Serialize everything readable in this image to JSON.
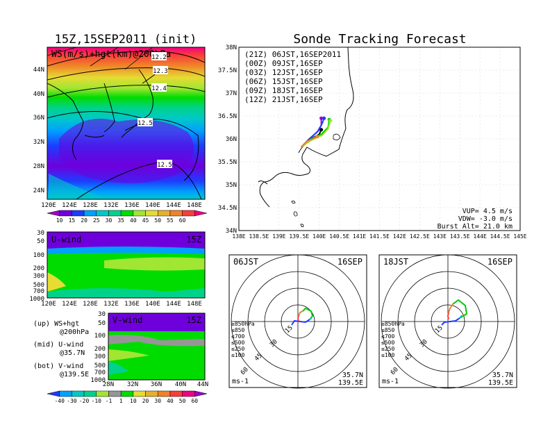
{
  "left_title": "15Z,15SEP2011 (init)",
  "right_title": "Sonde Tracking Forecast",
  "top_map": {
    "label": "WS(m/s)+hgt(km)@200hPa",
    "lat_ticks": [
      "44N",
      "40N",
      "36N",
      "32N",
      "28N",
      "24N"
    ],
    "lon_ticks": [
      "120E",
      "124E",
      "128E",
      "132E",
      "136E",
      "140E",
      "144E",
      "148E"
    ],
    "contour_labels": [
      "12.2",
      "12.3",
      "12.4",
      "12.5",
      "12.5"
    ],
    "colorbar": {
      "labels": [
        "10",
        "15",
        "20",
        "25",
        "30",
        "35",
        "40",
        "45",
        "50",
        "55",
        "60"
      ],
      "colors": [
        "#a000c8",
        "#6e00dc",
        "#1e3cff",
        "#00a0ff",
        "#00c8c8",
        "#00d28c",
        "#00dc00",
        "#a0e632",
        "#e6dc32",
        "#e6af2d",
        "#f08228",
        "#fa3c3c",
        "#f00082"
      ]
    }
  },
  "u_wind": {
    "label": "U-wind",
    "time": "15Z",
    "p_ticks": [
      "30",
      "50",
      "100",
      "200",
      "300",
      "500",
      "700",
      "1000"
    ],
    "lon_ticks": [
      "120E",
      "124E",
      "128E",
      "132E",
      "136E",
      "140E",
      "144E",
      "148E"
    ]
  },
  "v_wind": {
    "label": "V-wind",
    "time": "15Z",
    "p_ticks": [
      "30",
      "50",
      "100",
      "200",
      "300",
      "500",
      "700",
      "1000"
    ],
    "lat_ticks": [
      "28N",
      "32N",
      "36N",
      "40N",
      "44N"
    ],
    "colorbar": {
      "labels": [
        "-40",
        "-30",
        "-20",
        "-10",
        "-1",
        "1",
        "10",
        "20",
        "30",
        "40",
        "50",
        "60"
      ],
      "colors": [
        "#1e3cff",
        "#00a0ff",
        "#00c8c8",
        "#00d28c",
        "#a0e632",
        "#969696",
        "#00dc00",
        "#e6dc32",
        "#e6af2d",
        "#f08228",
        "#fa3c3c",
        "#f00082",
        "#a000c8"
      ]
    }
  },
  "notes": [
    {
      "a": "(up) WS+hgt",
      "b": "@200hPa"
    },
    {
      "a": "(mid) U-wind",
      "b": "@35.7N"
    },
    {
      "a": "(bot) V-wind",
      "b": "@139.5E"
    }
  ],
  "track_map": {
    "lat_ticks": [
      "38N",
      "37.5N",
      "37N",
      "36.5N",
      "36N",
      "35.5N",
      "35N",
      "34.5N",
      "34N"
    ],
    "lon_ticks": [
      "138E",
      "138.5E",
      "139E",
      "139.5E",
      "140E",
      "140.5E",
      "141E",
      "141.5E",
      "142E",
      "142.5E",
      "143E",
      "143.5E",
      "144E",
      "144.5E",
      "145E"
    ],
    "legend": [
      {
        "text": "(21Z) 06JST,16SEP2011",
        "color": "#000000"
      },
      {
        "text": "(00Z) 09JST,16SEP",
        "color": "#a000c8"
      },
      {
        "text": "(03Z) 12JST,16SEP",
        "color": "#1e3cff"
      },
      {
        "text": "(06Z) 15JST,16SEP",
        "color": "#00c800"
      },
      {
        "text": "(09Z) 18JST,16SEP",
        "color": "#a0e632"
      },
      {
        "text": "(12Z) 21JST,16SEP",
        "color": "#f08228"
      }
    ],
    "stats": [
      "VUP= 4.5 m/s",
      "VDW= -3.0 m/s",
      "Burst Alt= 21.0 km"
    ]
  },
  "hodo_left": {
    "time": "06JST",
    "date": "16SEP",
    "rings": [
      "15",
      "30",
      "45",
      "60"
    ],
    "unit": "ms-1",
    "location": [
      "35.7N",
      "139.5E"
    ]
  },
  "hodo_right": {
    "time": "18JST",
    "date": "16SEP",
    "rings": [
      "15",
      "30",
      "45",
      "60"
    ],
    "unit": "ms-1",
    "location": [
      "35.7N",
      "139.5E"
    ]
  },
  "levels": [
    {
      "text": "≥850hPa",
      "color": "#fa3c3c"
    },
    {
      "text": "≤850",
      "color": "#f08228"
    },
    {
      "text": "≤700",
      "color": "#e6dc32"
    },
    {
      "text": "≤500",
      "color": "#00c800"
    },
    {
      "text": "≤250",
      "color": "#00c8c8"
    },
    {
      "text": "≤100",
      "color": "#1e3cff"
    }
  ],
  "chart_data": {
    "type": "heatmap",
    "title": "Sonde Tracking Forecast",
    "track_lon_range": [
      138,
      145
    ],
    "track_lat_range": [
      34,
      38
    ],
    "tracks": [
      {
        "launch": "06JST",
        "color": "#000000",
        "points": [
          [
            139.55,
            35.82
          ],
          [
            139.72,
            35.97
          ],
          [
            139.9,
            36.05
          ],
          [
            140.0,
            36.1
          ],
          [
            140.05,
            36.2
          ]
        ]
      },
      {
        "launch": "09JST",
        "color": "#a000c8",
        "points": [
          [
            139.55,
            35.82
          ],
          [
            139.75,
            36.0
          ],
          [
            139.95,
            36.15
          ],
          [
            140.05,
            36.3
          ],
          [
            140.05,
            36.45
          ]
        ]
      },
      {
        "launch": "12JST",
        "color": "#1e3cff",
        "points": [
          [
            139.55,
            35.82
          ],
          [
            139.78,
            36.02
          ],
          [
            139.98,
            36.18
          ],
          [
            140.08,
            36.35
          ],
          [
            140.12,
            36.45
          ]
        ]
      },
      {
        "launch": "15JST",
        "color": "#00c800",
        "points": [
          [
            139.55,
            35.82
          ],
          [
            139.8,
            36.0
          ],
          [
            140.05,
            36.1
          ],
          [
            140.22,
            36.25
          ],
          [
            140.25,
            36.42
          ]
        ]
      },
      {
        "launch": "18JST",
        "color": "#a0e632",
        "points": [
          [
            139.55,
            35.82
          ],
          [
            139.82,
            35.98
          ],
          [
            140.08,
            36.08
          ],
          [
            140.22,
            36.22
          ],
          [
            140.28,
            36.4
          ]
        ]
      },
      {
        "launch": "21JST",
        "color": "#f08228",
        "points": [
          [
            139.55,
            35.82
          ],
          [
            139.7,
            35.95
          ],
          [
            139.85,
            36.0
          ],
          [
            139.95,
            36.05
          ]
        ]
      }
    ]
  }
}
